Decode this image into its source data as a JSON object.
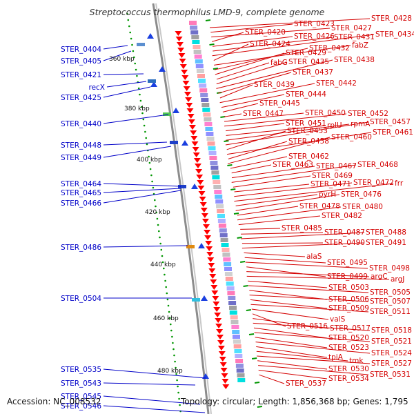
{
  "title": "Streptococcus thermophilus LMD-9, complete genome",
  "footer": {
    "accession": "Accession: NC_008532",
    "topology": "Topology: circular; Length: 1,856,368 bp; Genes: 1,795"
  },
  "colors": {
    "left_labels": "#0000c8",
    "right_labels": "#d40000",
    "arrows": "#ff0000",
    "ruler": "#009600"
  },
  "kbp_labels": [
    "360 kbp",
    "380 kbp",
    "400 kbp",
    "420 kbp",
    "440 kbp",
    "460 kbp",
    "480 kbp"
  ],
  "left_labels": [
    "STER_0404",
    "STER_0405",
    "STER_0421",
    "recX",
    "STER_0425",
    "STER_0440",
    "STER_0448",
    "STER_0449",
    "STER_0464",
    "STER_0465",
    "STER_0466",
    "STER_0486",
    "STER_0504",
    "STER_0535",
    "STER_0543",
    "STER_0545",
    "STER_0546"
  ],
  "right_labels": [
    "STER_0428",
    "STER_0423",
    "STER_0427",
    "STER_0420",
    "STER_0426",
    "STER_0431",
    "STER_0434",
    "STER_0424",
    "fabZ",
    "STER_0432",
    "STER_0429",
    "fabG",
    "STER_0435",
    "STER_0438",
    "STER_0437",
    "STER_0439",
    "STER_0442",
    "STER_0444",
    "STER_0445",
    "STER_0447",
    "STER_0450",
    "STER_0452",
    "STER_0451",
    "rplU",
    "rpmA",
    "STER_0457",
    "STER_0453",
    "STER_0461",
    "STER_0458",
    "STER_0460",
    "STER_0462",
    "STER_0463",
    "STER_0467",
    "STER_0468",
    "STER_0469",
    "STER_0471",
    "STER_0472",
    "frr",
    "pyrH",
    "STER_0476",
    "STER_0478",
    "STER_0480",
    "STER_0482",
    "STER_0485",
    "STER_0487",
    "STER_0488",
    "STER_0490",
    "STER_0491",
    "alaS",
    "STER_0495",
    "STER_0498",
    "STER_0499",
    "argC",
    "argJ",
    "STER_0503",
    "STER_0505",
    "STER_0506",
    "STER_0507",
    "STER_0509",
    "STER_0511",
    "valS",
    "STER_0516",
    "STER_0517",
    "STER_0518",
    "STER_0520",
    "STER_0521",
    "STER_0523",
    "STER_0524",
    "tpiA",
    "tmk",
    "STER_0527",
    "STER_0530",
    "STER_0531",
    "STER_0534",
    "STER_0537"
  ]
}
